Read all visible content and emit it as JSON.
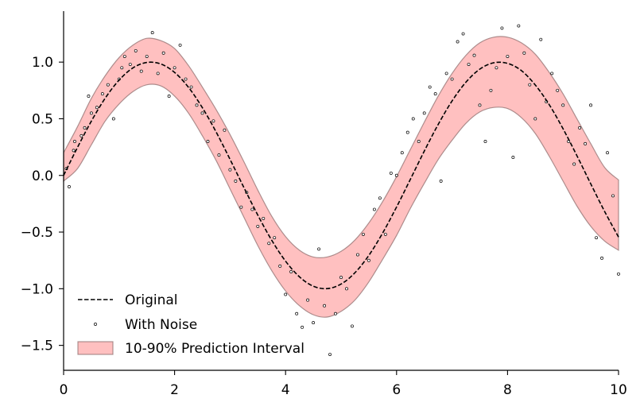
{
  "chart_data": {
    "type": "line",
    "title": "",
    "xlabel": "",
    "ylabel": "",
    "xlim": [
      0,
      10
    ],
    "ylim": [
      -1.72,
      1.45
    ],
    "x_ticks": [
      0,
      2,
      4,
      6,
      8,
      10
    ],
    "x_tick_labels": [
      "0",
      "2",
      "4",
      "6",
      "8",
      "10"
    ],
    "y_ticks": [
      -1.5,
      -1.0,
      -0.5,
      0.0,
      0.5,
      1.0
    ],
    "y_tick_labels": [
      "−1.5",
      "−1.0",
      "−0.5",
      "0.0",
      "0.5",
      "1.0"
    ],
    "grid": false,
    "spines": "left-bottom",
    "legend_position": "lower-left",
    "legend": [
      {
        "label": "Original",
        "kind": "dashed-line",
        "color": "#000000"
      },
      {
        "label": "With Noise",
        "kind": "marker",
        "color": "#000000"
      },
      {
        "label": "10-90% Prediction Interval",
        "kind": "patch",
        "color": "#ff8c8c"
      }
    ],
    "series": [
      {
        "name": "Original",
        "kind": "dashed-line",
        "color": "#000000",
        "x": [
          0.0,
          0.25,
          0.5,
          0.75,
          1.0,
          1.25,
          1.5,
          1.75,
          2.0,
          2.25,
          2.5,
          2.75,
          3.0,
          3.25,
          3.5,
          3.75,
          4.0,
          4.25,
          4.5,
          4.75,
          5.0,
          5.25,
          5.5,
          5.75,
          6.0,
          6.25,
          6.5,
          6.75,
          7.0,
          7.25,
          7.5,
          7.75,
          8.0,
          8.25,
          8.5,
          8.75,
          9.0,
          9.25,
          9.5,
          9.75,
          10.0
        ],
        "y": [
          0.0,
          0.247,
          0.479,
          0.682,
          0.841,
          0.949,
          0.997,
          0.984,
          0.909,
          0.778,
          0.598,
          0.382,
          0.141,
          -0.108,
          -0.351,
          -0.572,
          -0.757,
          -0.895,
          -0.978,
          -0.999,
          -0.959,
          -0.859,
          -0.706,
          -0.508,
          -0.279,
          -0.033,
          0.215,
          0.45,
          0.657,
          0.823,
          0.938,
          0.994,
          0.989,
          0.925,
          0.798,
          0.625,
          0.412,
          0.174,
          -0.075,
          -0.319,
          -0.544
        ]
      },
      {
        "name": "10-90% Prediction Interval",
        "kind": "band",
        "color": "#ff8c8c",
        "x": [
          0.0,
          0.25,
          0.5,
          0.75,
          1.0,
          1.25,
          1.5,
          1.75,
          2.0,
          2.25,
          2.5,
          2.75,
          3.0,
          3.25,
          3.5,
          3.75,
          4.0,
          4.25,
          4.5,
          4.75,
          5.0,
          5.25,
          5.5,
          5.75,
          6.0,
          6.25,
          6.5,
          6.75,
          7.0,
          7.25,
          7.5,
          7.75,
          8.0,
          8.25,
          8.5,
          8.75,
          9.0,
          9.25,
          9.5,
          9.75,
          10.0
        ],
        "lower": [
          -0.05,
          0.06,
          0.27,
          0.48,
          0.63,
          0.74,
          0.8,
          0.79,
          0.7,
          0.55,
          0.35,
          0.13,
          -0.12,
          -0.37,
          -0.62,
          -0.84,
          -1.02,
          -1.15,
          -1.23,
          -1.25,
          -1.2,
          -1.1,
          -0.94,
          -0.74,
          -0.53,
          -0.29,
          -0.07,
          0.14,
          0.31,
          0.46,
          0.56,
          0.6,
          0.59,
          0.51,
          0.37,
          0.17,
          -0.05,
          -0.27,
          -0.45,
          -0.58,
          -0.66
        ],
        "upper": [
          0.2,
          0.43,
          0.68,
          0.88,
          1.04,
          1.15,
          1.21,
          1.19,
          1.12,
          0.97,
          0.78,
          0.58,
          0.36,
          0.12,
          -0.13,
          -0.36,
          -0.54,
          -0.66,
          -0.72,
          -0.72,
          -0.67,
          -0.57,
          -0.42,
          -0.23,
          -0.01,
          0.23,
          0.47,
          0.7,
          0.9,
          1.06,
          1.17,
          1.22,
          1.22,
          1.17,
          1.07,
          0.91,
          0.72,
          0.5,
          0.28,
          0.07,
          -0.04
        ]
      },
      {
        "name": "With Noise",
        "kind": "scatter",
        "color": "#000000",
        "x": [
          0.05,
          0.1,
          0.18,
          0.2,
          0.32,
          0.38,
          0.45,
          0.5,
          0.6,
          0.7,
          0.8,
          0.9,
          1.0,
          1.05,
          1.1,
          1.2,
          1.3,
          1.4,
          1.5,
          1.6,
          1.7,
          1.8,
          1.9,
          2.0,
          2.1,
          2.2,
          2.3,
          2.4,
          2.5,
          2.6,
          2.7,
          2.8,
          2.9,
          3.0,
          3.1,
          3.2,
          3.3,
          3.4,
          3.5,
          3.6,
          3.7,
          3.8,
          3.9,
          4.0,
          4.1,
          4.2,
          4.3,
          4.4,
          4.5,
          4.6,
          4.7,
          4.8,
          4.9,
          5.0,
          5.1,
          5.2,
          5.3,
          5.4,
          5.5,
          5.6,
          5.7,
          5.8,
          5.9,
          6.0,
          6.1,
          6.2,
          6.3,
          6.4,
          6.5,
          6.6,
          6.7,
          6.8,
          6.9,
          7.0,
          7.1,
          7.2,
          7.3,
          7.4,
          7.5,
          7.6,
          7.7,
          7.8,
          7.9,
          8.0,
          8.1,
          8.2,
          8.3,
          8.4,
          8.5,
          8.6,
          8.7,
          8.8,
          8.9,
          9.0,
          9.1,
          9.2,
          9.3,
          9.4,
          9.5,
          9.6,
          9.7,
          9.8,
          9.9,
          10.0
        ],
        "y": [
          0.06,
          -0.1,
          0.22,
          0.3,
          0.35,
          0.42,
          0.7,
          0.55,
          0.6,
          0.72,
          0.8,
          0.5,
          0.85,
          0.95,
          1.05,
          0.98,
          1.1,
          0.92,
          1.05,
          1.26,
          0.9,
          1.08,
          0.7,
          0.95,
          1.15,
          0.85,
          0.78,
          0.62,
          0.55,
          0.3,
          0.48,
          0.18,
          0.4,
          0.05,
          -0.05,
          -0.28,
          -0.15,
          -0.3,
          -0.45,
          -0.38,
          -0.6,
          -0.55,
          -0.8,
          -1.05,
          -0.85,
          -1.22,
          -1.34,
          -1.1,
          -1.3,
          -0.65,
          -1.15,
          -1.58,
          -1.22,
          -0.9,
          -1.0,
          -1.33,
          -0.7,
          -0.52,
          -0.75,
          -0.3,
          -0.2,
          -0.52,
          0.02,
          0.0,
          0.2,
          0.38,
          0.5,
          0.3,
          0.55,
          0.78,
          0.72,
          -0.05,
          0.9,
          0.85,
          1.18,
          1.25,
          0.98,
          1.06,
          0.62,
          0.3,
          0.75,
          0.95,
          1.3,
          1.05,
          0.16,
          1.32,
          1.08,
          0.8,
          0.5,
          1.2,
          0.65,
          0.9,
          0.75,
          0.62,
          0.3,
          0.1,
          0.42,
          0.28,
          0.62,
          -0.55,
          -0.73,
          0.2,
          -0.18,
          -0.87
        ]
      }
    ]
  }
}
